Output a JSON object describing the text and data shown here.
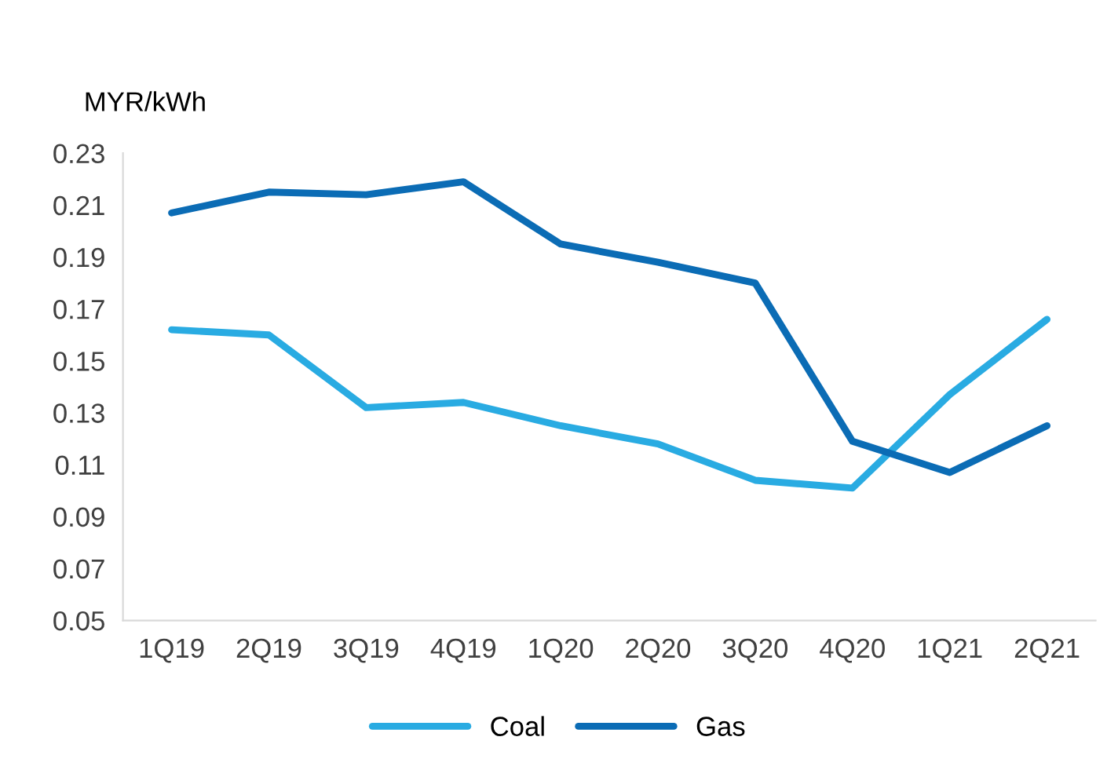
{
  "chart_data": {
    "type": "line",
    "ylabel": "MYR/kWh",
    "categories": [
      "1Q19",
      "2Q19",
      "3Q19",
      "4Q19",
      "1Q20",
      "2Q20",
      "3Q20",
      "4Q20",
      "1Q21",
      "2Q21"
    ],
    "series": [
      {
        "name": "Coal",
        "color": "#29abe2",
        "values": [
          0.162,
          0.16,
          0.132,
          0.134,
          0.125,
          0.118,
          0.104,
          0.101,
          0.137,
          0.166
        ]
      },
      {
        "name": "Gas",
        "color": "#0b6cb5",
        "values": [
          0.207,
          0.215,
          0.214,
          0.219,
          0.195,
          0.188,
          0.18,
          0.119,
          0.107,
          0.125
        ]
      }
    ],
    "ylim": [
      0.05,
      0.23
    ],
    "yticks": [
      {
        "value": 0.05,
        "label": "0.05"
      },
      {
        "value": 0.07,
        "label": "0.07"
      },
      {
        "value": 0.09,
        "label": "0.09"
      },
      {
        "value": 0.11,
        "label": "0.11"
      },
      {
        "value": 0.13,
        "label": "0.13"
      },
      {
        "value": 0.15,
        "label": "0.15"
      },
      {
        "value": 0.17,
        "label": "0.17"
      },
      {
        "value": 0.19,
        "label": "0.19"
      },
      {
        "value": 0.21,
        "label": "0.21"
      },
      {
        "value": 0.23,
        "label": "0.23"
      }
    ],
    "grid": false,
    "legend": "bottom",
    "marker": "none",
    "line_style": "solid"
  }
}
